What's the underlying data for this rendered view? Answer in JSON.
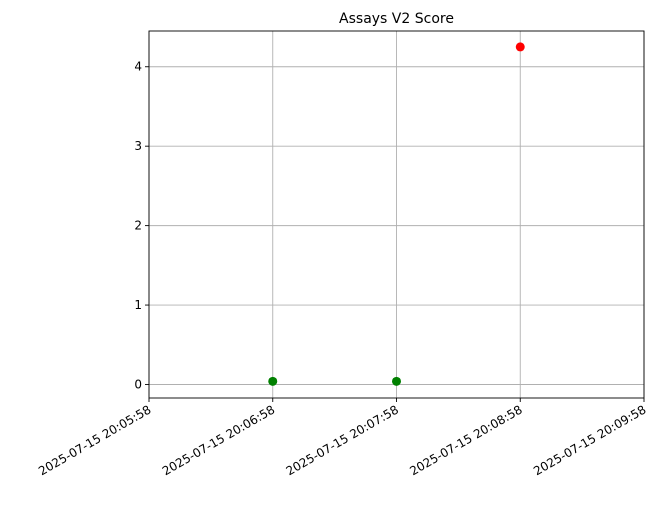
{
  "chart_data": {
    "type": "scatter",
    "title": "Assays V2 Score",
    "xlabel": "",
    "ylabel": "",
    "x_ticks": [
      "2025-07-15 20:05:58",
      "2025-07-15 20:06:58",
      "2025-07-15 20:07:58",
      "2025-07-15 20:08:58",
      "2025-07-15 20:09:58"
    ],
    "xlim": [
      "2025-07-15 20:05:58",
      "2025-07-15 20:09:58"
    ],
    "y_ticks": [
      "0",
      "1",
      "2",
      "3",
      "4"
    ],
    "ylim": [
      -0.17,
      4.45
    ],
    "grid": true,
    "points": [
      {
        "x": "2025-07-15 20:06:58",
        "y": 0.04,
        "color": "#008000"
      },
      {
        "x": "2025-07-15 20:07:58",
        "y": 0.04,
        "color": "#008000"
      },
      {
        "x": "2025-07-15 20:08:58",
        "y": 4.25,
        "color": "#ff0000"
      }
    ]
  }
}
